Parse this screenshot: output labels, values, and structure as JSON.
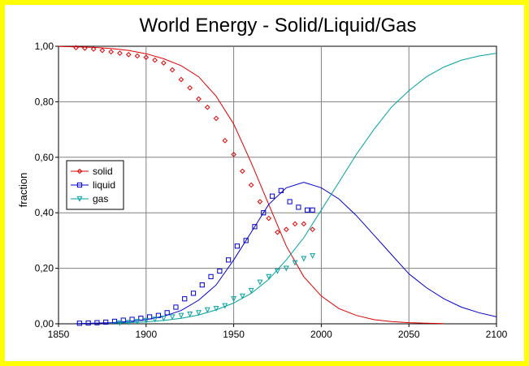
{
  "chart_data": {
    "type": "line",
    "title": "World Energy - Solid/Liquid/Gas",
    "xlabel": "",
    "ylabel": "fraction",
    "xlim": [
      1850,
      2100
    ],
    "ylim": [
      0,
      1
    ],
    "x_ticks": [
      1850,
      1900,
      1950,
      2000,
      2050,
      2100
    ],
    "x_tick_labels": [
      "1850",
      "1900",
      "1950",
      "2000",
      "2050",
      "2100"
    ],
    "y_ticks": [
      0,
      0.2,
      0.4,
      0.6,
      0.8,
      1.0
    ],
    "y_tick_labels": [
      "0,00",
      "0,20",
      "0,40",
      "0,60",
      "0,80",
      "1,00"
    ],
    "grid": true,
    "legend_position": "left-middle",
    "series": [
      {
        "name": "solid",
        "color": "#dd0000",
        "marker": "diamond",
        "observed": {
          "x": [
            1860,
            1865,
            1870,
            1875,
            1880,
            1885,
            1890,
            1895,
            1900,
            1905,
            1910,
            1915,
            1920,
            1925,
            1930,
            1935,
            1940,
            1945,
            1950,
            1955,
            1960,
            1965,
            1970,
            1975,
            1980,
            1985,
            1990,
            1995
          ],
          "y": [
            0.995,
            0.993,
            0.99,
            0.985,
            0.98,
            0.975,
            0.97,
            0.965,
            0.96,
            0.95,
            0.94,
            0.915,
            0.88,
            0.85,
            0.81,
            0.78,
            0.74,
            0.66,
            0.61,
            0.55,
            0.5,
            0.44,
            0.38,
            0.33,
            0.34,
            0.36,
            0.36,
            0.34
          ]
        },
        "fit": {
          "x": [
            1850,
            1860,
            1870,
            1880,
            1890,
            1900,
            1910,
            1920,
            1930,
            1940,
            1950,
            1960,
            1970,
            1980,
            1990,
            2000,
            2010,
            2020,
            2030,
            2040,
            2050,
            2060,
            2070
          ],
          "y": [
            0.999,
            0.998,
            0.996,
            0.992,
            0.985,
            0.973,
            0.955,
            0.93,
            0.89,
            0.82,
            0.72,
            0.58,
            0.43,
            0.28,
            0.17,
            0.1,
            0.055,
            0.03,
            0.015,
            0.008,
            0.004,
            0.002,
            0.001
          ]
        }
      },
      {
        "name": "liquid",
        "color": "#0000cc",
        "marker": "square",
        "observed": {
          "x": [
            1862,
            1867,
            1872,
            1877,
            1882,
            1887,
            1892,
            1897,
            1902,
            1907,
            1912,
            1917,
            1922,
            1927,
            1932,
            1937,
            1942,
            1947,
            1952,
            1957,
            1962,
            1967,
            1972,
            1977,
            1982,
            1987,
            1992,
            1995
          ],
          "y": [
            0.002,
            0.003,
            0.004,
            0.006,
            0.009,
            0.013,
            0.016,
            0.02,
            0.025,
            0.03,
            0.04,
            0.06,
            0.09,
            0.11,
            0.14,
            0.17,
            0.19,
            0.23,
            0.28,
            0.3,
            0.35,
            0.4,
            0.46,
            0.48,
            0.44,
            0.42,
            0.41,
            0.41
          ]
        },
        "fit": {
          "x": [
            1860,
            1870,
            1880,
            1890,
            1900,
            1910,
            1920,
            1930,
            1940,
            1950,
            1960,
            1970,
            1980,
            1990,
            2000,
            2010,
            2020,
            2030,
            2040,
            2050,
            2060,
            2070,
            2080,
            2090,
            2100
          ],
          "y": [
            0.001,
            0.002,
            0.004,
            0.008,
            0.015,
            0.027,
            0.048,
            0.085,
            0.14,
            0.23,
            0.33,
            0.43,
            0.49,
            0.51,
            0.49,
            0.45,
            0.39,
            0.32,
            0.25,
            0.18,
            0.13,
            0.09,
            0.06,
            0.04,
            0.025
          ]
        }
      },
      {
        "name": "gas",
        "color": "#00a0a0",
        "marker": "triangle-down",
        "observed": {
          "x": [
            1885,
            1890,
            1895,
            1900,
            1905,
            1910,
            1915,
            1920,
            1925,
            1930,
            1935,
            1940,
            1945,
            1950,
            1955,
            1960,
            1965,
            1970,
            1975,
            1980,
            1985,
            1990,
            1995
          ],
          "y": [
            0.003,
            0.005,
            0.008,
            0.012,
            0.016,
            0.02,
            0.025,
            0.03,
            0.035,
            0.04,
            0.05,
            0.055,
            0.065,
            0.09,
            0.1,
            0.12,
            0.15,
            0.17,
            0.19,
            0.2,
            0.22,
            0.235,
            0.245
          ]
        },
        "fit": {
          "x": [
            1880,
            1890,
            1900,
            1910,
            1920,
            1930,
            1940,
            1950,
            1960,
            1970,
            1980,
            1990,
            2000,
            2010,
            2020,
            2030,
            2040,
            2050,
            2060,
            2070,
            2080,
            2090,
            2100
          ],
          "y": [
            0.002,
            0.004,
            0.007,
            0.012,
            0.02,
            0.032,
            0.05,
            0.075,
            0.11,
            0.16,
            0.23,
            0.31,
            0.41,
            0.51,
            0.61,
            0.7,
            0.78,
            0.84,
            0.89,
            0.925,
            0.95,
            0.965,
            0.975
          ]
        }
      }
    ]
  }
}
